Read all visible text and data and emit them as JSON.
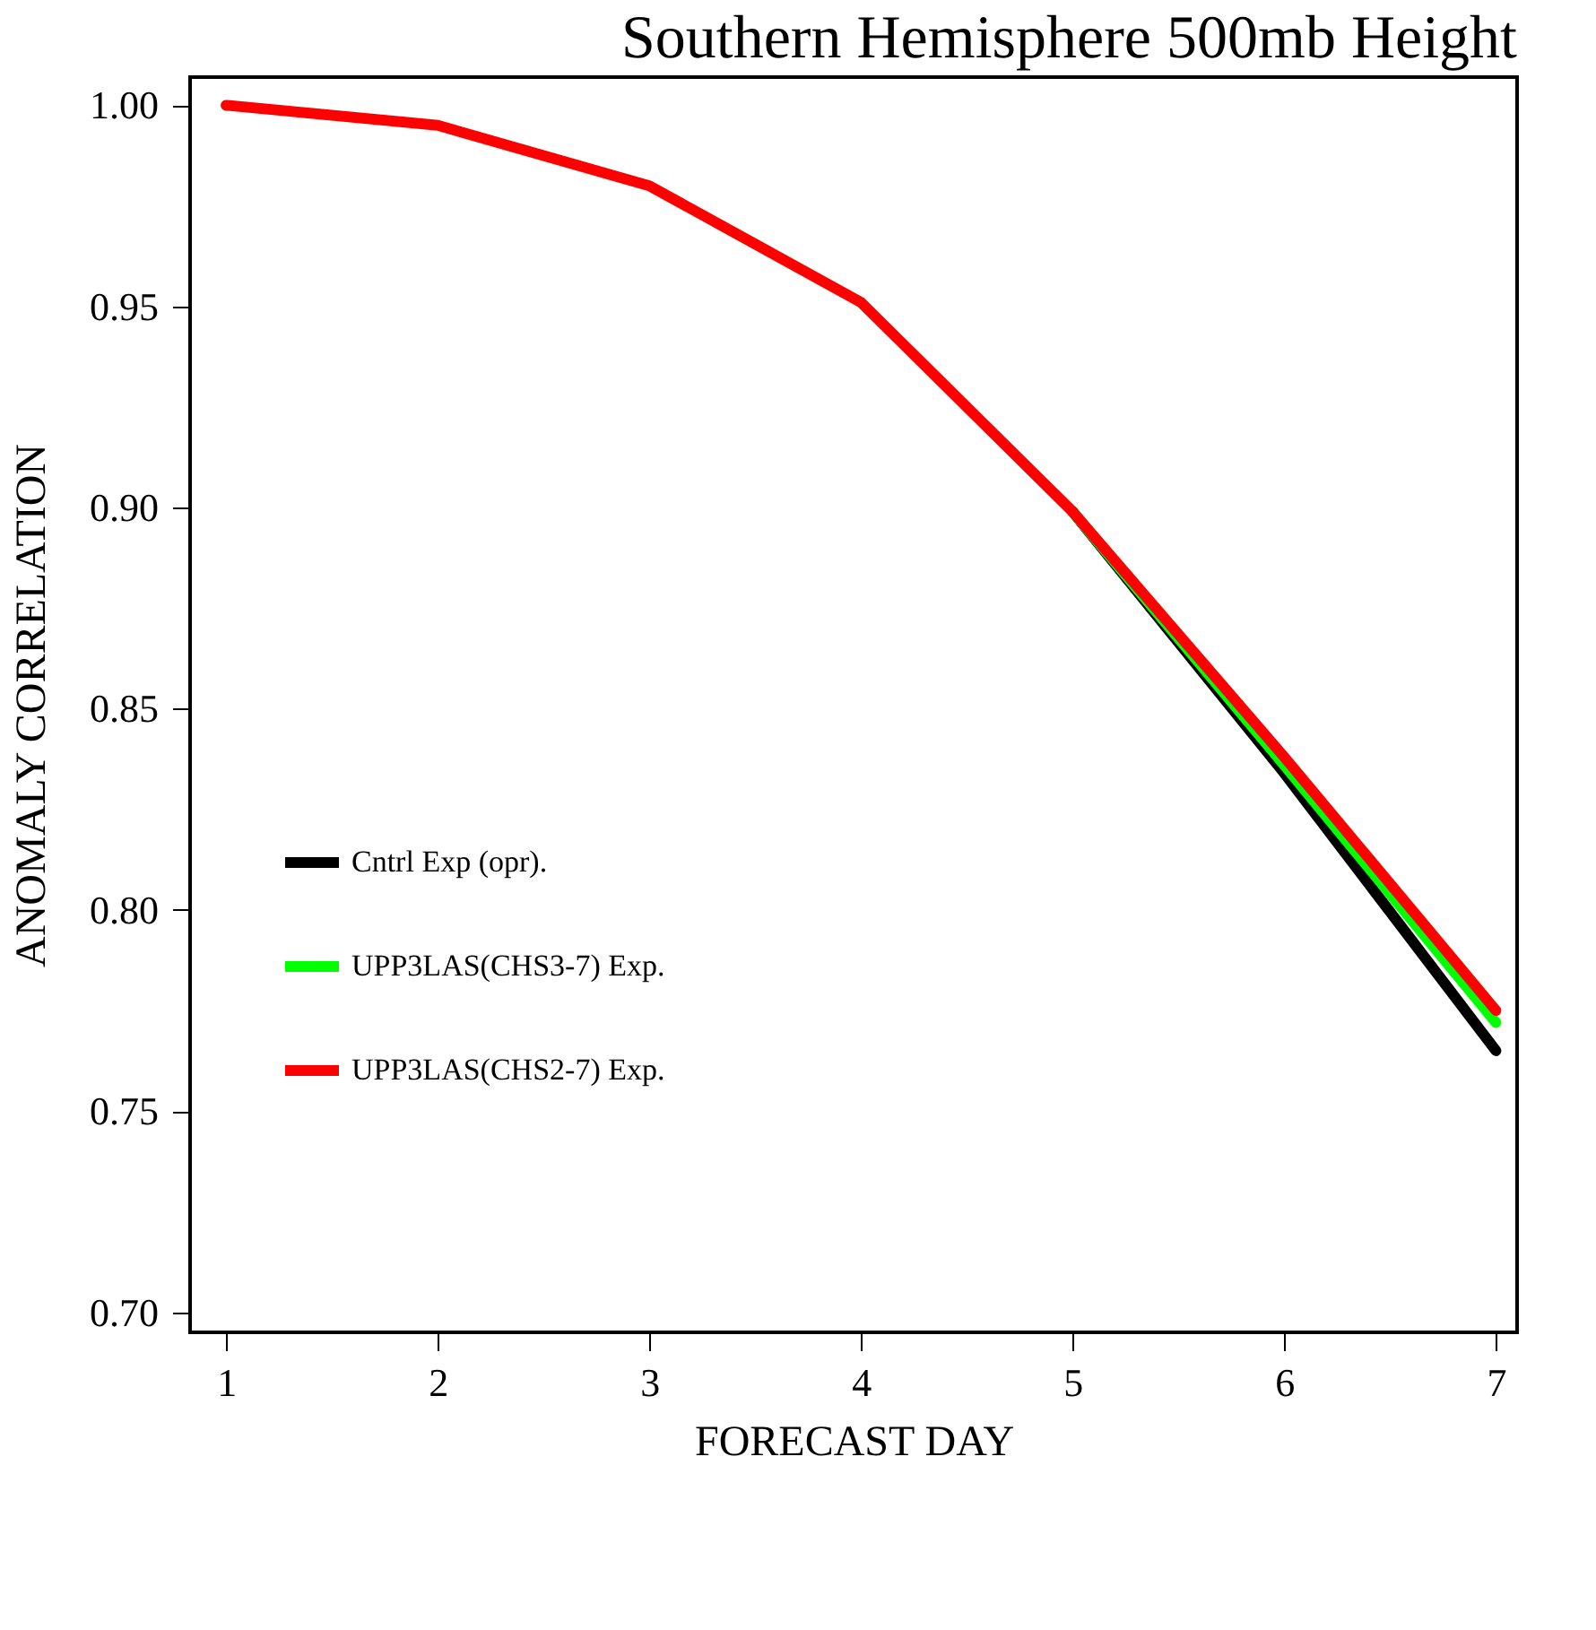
{
  "chart_data": {
    "type": "line",
    "title": "Southern Hemisphere 500mb Height",
    "xlabel": "FORECAST DAY",
    "ylabel": "ANOMALY CORRELATION",
    "x": [
      1,
      2,
      3,
      4,
      5,
      6,
      7
    ],
    "series": [
      {
        "name": "Cntrl Exp (opr).",
        "color": "#000000",
        "values": [
          null,
          null,
          null,
          null,
          0.899,
          0.834,
          0.765
        ]
      },
      {
        "name": "UPP3LAS(CHS3-7) Exp.",
        "color": "#00ff00",
        "values": [
          null,
          null,
          null,
          null,
          0.899,
          0.836,
          0.772
        ]
      },
      {
        "name": "UPP3LAS(CHS2-7) Exp.",
        "color": "#ff0000",
        "values": [
          1.0,
          0.995,
          0.98,
          0.951,
          0.899,
          0.838,
          0.775
        ]
      }
    ],
    "xlim": [
      0.83,
      7.1
    ],
    "xticks": [
      1,
      2,
      3,
      4,
      5,
      6,
      7
    ],
    "ylim": [
      0.695,
      1.007
    ],
    "yticks": [
      {
        "value": 0.7,
        "label": "0.70"
      },
      0.75,
      {
        "value": 0.8,
        "label": "0.80"
      },
      0.85,
      {
        "value": 0.9,
        "label": "0.90"
      },
      0.95,
      {
        "value": 1.0,
        "label": "1.00"
      }
    ],
    "grid": false,
    "legend": "left",
    "marker": "none",
    "line_style": "solid"
  }
}
